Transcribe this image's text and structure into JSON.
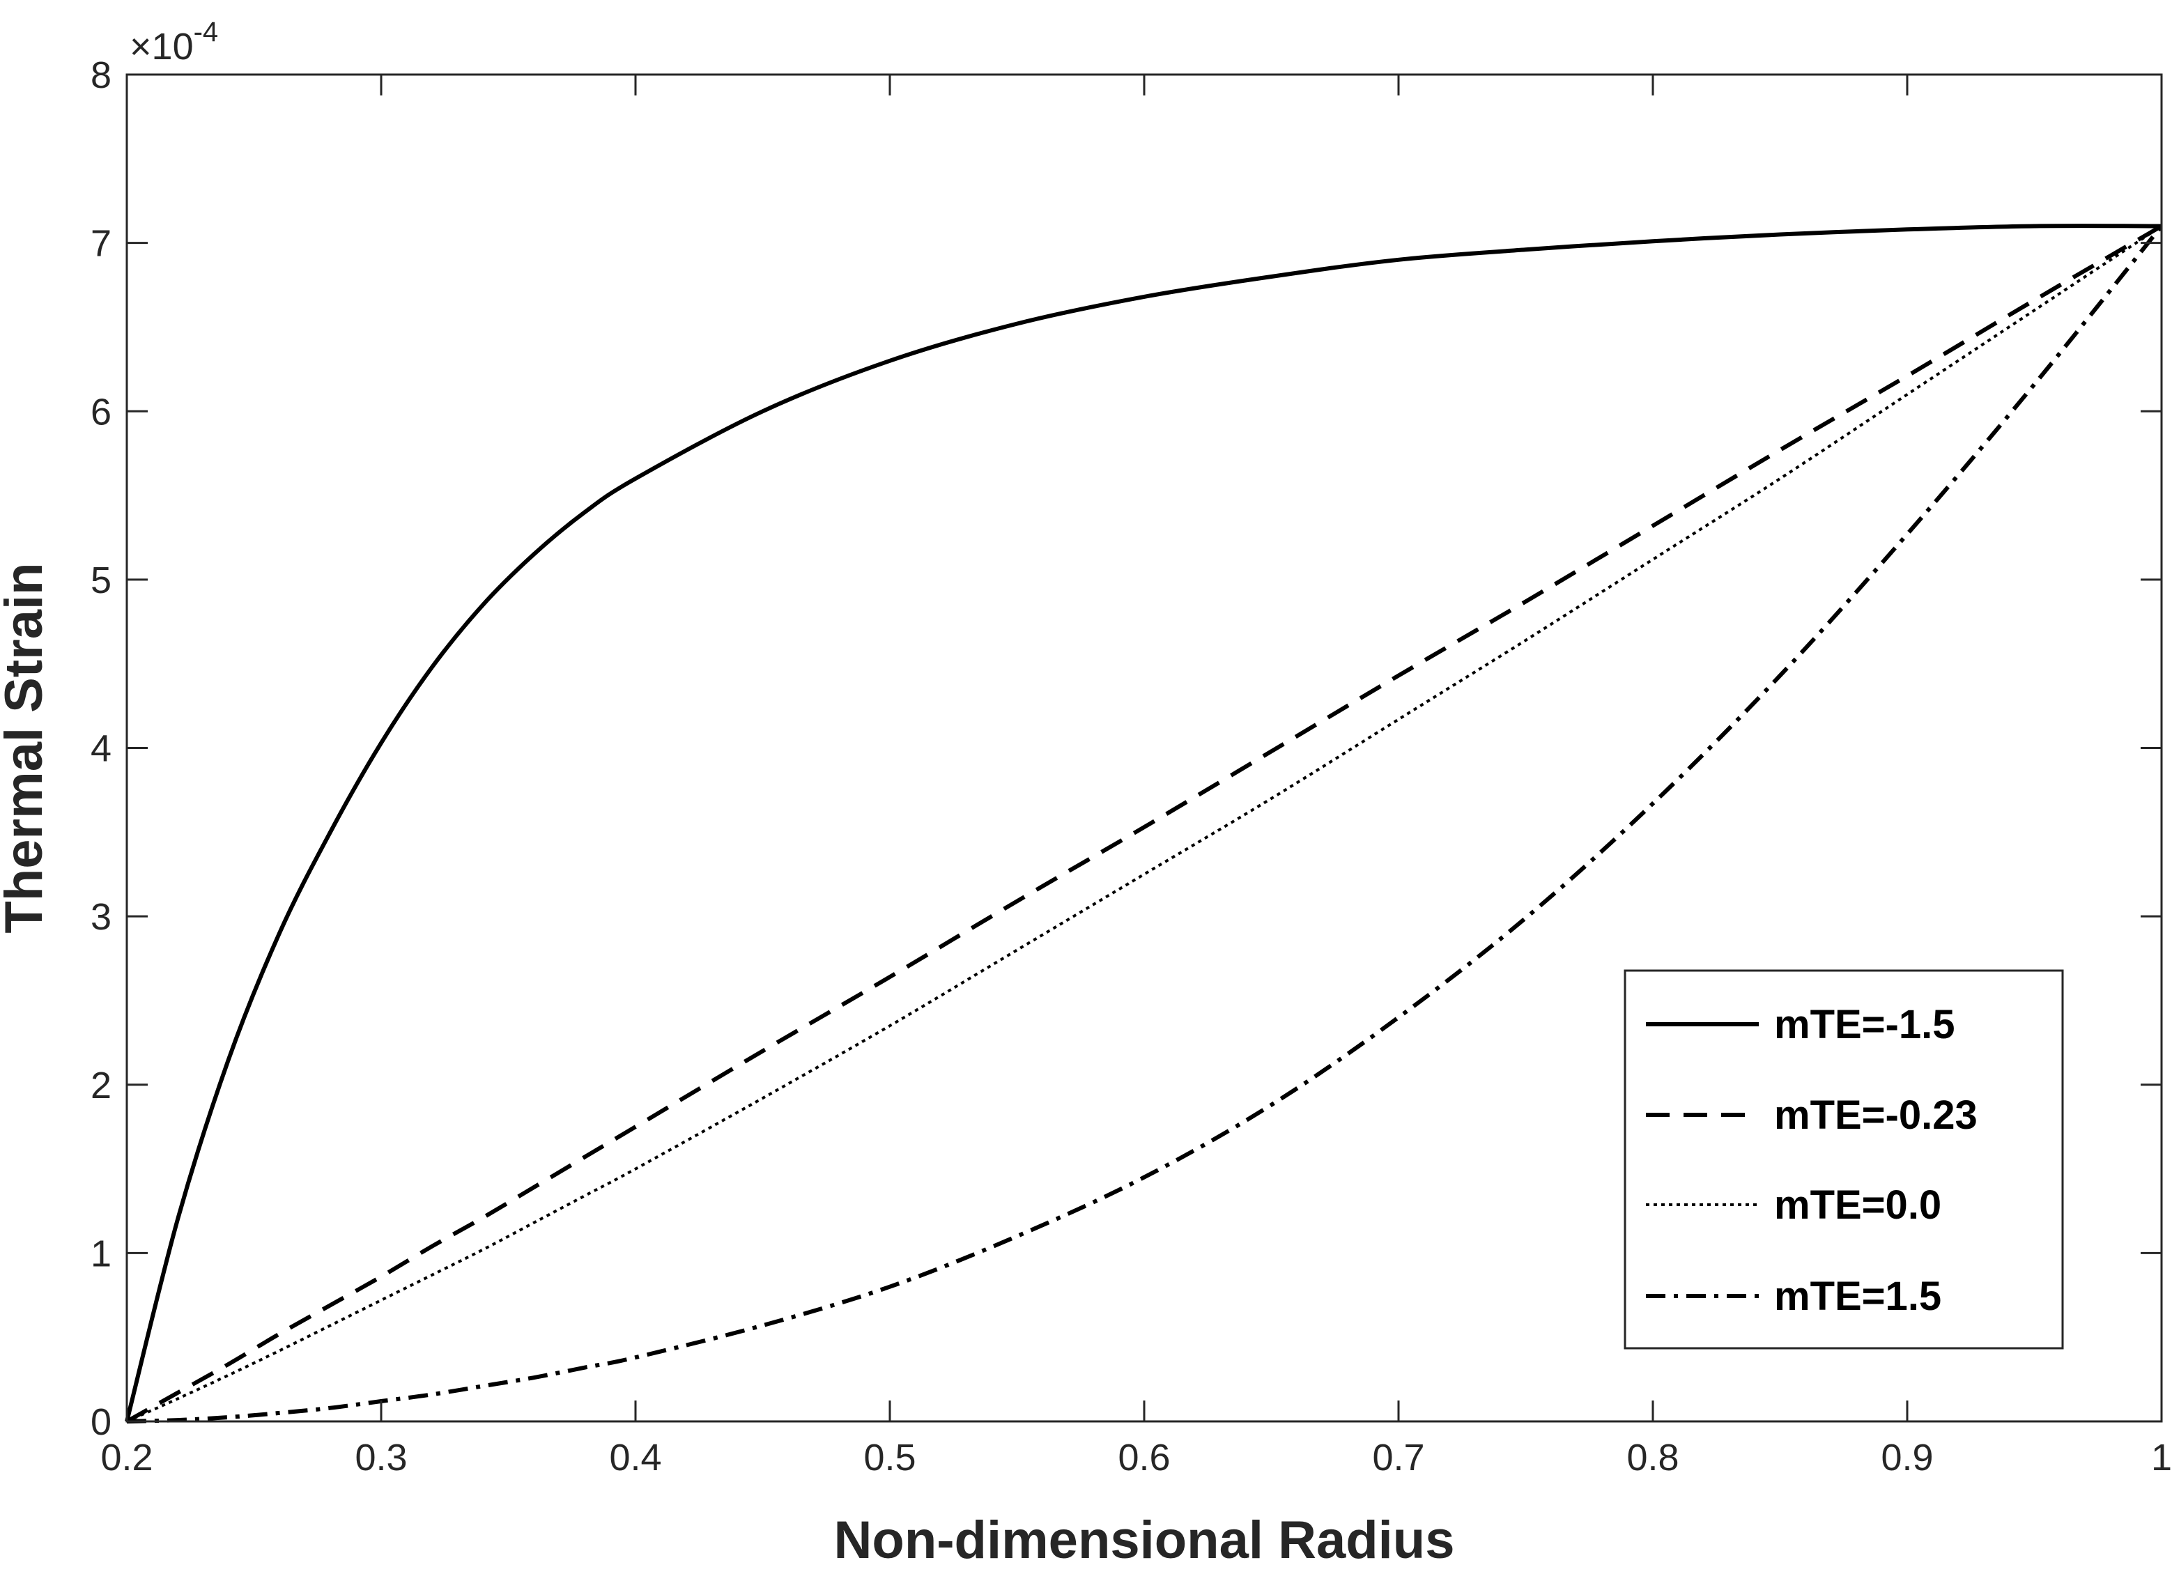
{
  "chart_data": {
    "type": "line",
    "title": "",
    "xlabel": "Non-dimensional Radius",
    "ylabel": "Thermal Strain",
    "y_exponent_base": "×10",
    "y_exponent_power": "-4",
    "xlim": [
      0.2,
      1.0
    ],
    "ylim": [
      0,
      8
    ],
    "y_multiplier": 0.0001,
    "xticks": [
      0.2,
      0.3,
      0.4,
      0.5,
      0.6,
      0.7,
      0.8,
      0.9,
      1.0
    ],
    "xtick_labels": [
      "0.2",
      "0.3",
      "0.4",
      "0.5",
      "0.6",
      "0.7",
      "0.8",
      "0.9",
      "1"
    ],
    "yticks": [
      0,
      1,
      2,
      3,
      4,
      5,
      6,
      7,
      8
    ],
    "ytick_labels": [
      "0",
      "1",
      "2",
      "3",
      "4",
      "5",
      "6",
      "7",
      "8"
    ],
    "grid": false,
    "legend_position": "bottom-right",
    "x": [
      0.2,
      0.22,
      0.24,
      0.26,
      0.28,
      0.3,
      0.32,
      0.34,
      0.36,
      0.38,
      0.4,
      0.45,
      0.5,
      0.55,
      0.6,
      0.65,
      0.7,
      0.75,
      0.8,
      0.85,
      0.9,
      0.95,
      1.0
    ],
    "series": [
      {
        "name": "mTE=-1.5",
        "style": "solid",
        "color": "#000000",
        "values": [
          0,
          1.2,
          2.15,
          2.9,
          3.5,
          4.03,
          4.48,
          4.85,
          5.15,
          5.4,
          5.6,
          6.0,
          6.3,
          6.52,
          6.68,
          6.8,
          6.9,
          6.96,
          7.01,
          7.05,
          7.08,
          7.1,
          7.1
        ]
      },
      {
        "name": "mTE=-0.23",
        "style": "dashed",
        "color": "#000000",
        "values": [
          0,
          0.17,
          0.34,
          0.52,
          0.69,
          0.86,
          1.04,
          1.21,
          1.39,
          1.57,
          1.75,
          2.2,
          2.64,
          3.09,
          3.53,
          3.98,
          4.43,
          4.87,
          5.32,
          5.77,
          6.21,
          6.66,
          7.1
        ]
      },
      {
        "name": "mTE=0.0",
        "style": "dotted",
        "color": "#000000",
        "values": [
          0,
          0.135,
          0.275,
          0.42,
          0.57,
          0.72,
          0.87,
          1.02,
          1.18,
          1.34,
          1.5,
          1.92,
          2.35,
          2.8,
          3.25,
          3.7,
          4.17,
          4.64,
          5.12,
          5.6,
          6.1,
          6.6,
          7.1
        ]
      },
      {
        "name": "mTE=1.5",
        "style": "dashdot",
        "color": "#000000",
        "values": [
          0,
          0.008,
          0.025,
          0.05,
          0.08,
          0.12,
          0.16,
          0.21,
          0.26,
          0.32,
          0.38,
          0.57,
          0.8,
          1.1,
          1.45,
          1.88,
          2.4,
          2.99,
          3.67,
          4.43,
          5.27,
          6.16,
          7.1
        ]
      }
    ]
  }
}
